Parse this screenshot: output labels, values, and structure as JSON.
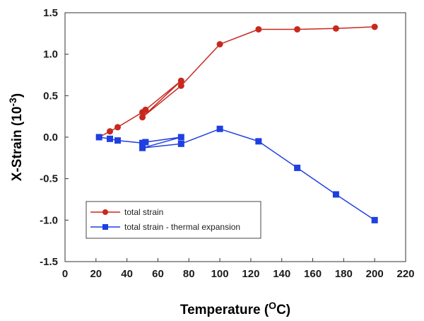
{
  "chart_data": {
    "type": "line",
    "xlabel_main": "Temperature (",
    "xlabel_sup": "O",
    "xlabel_end": "C)",
    "ylabel_main": "X-Strain (10",
    "ylabel_sup": "-3",
    "ylabel_end": ")",
    "xlim": [
      0,
      220
    ],
    "ylim": [
      -1.5,
      1.5
    ],
    "xticks": [
      0,
      20,
      40,
      60,
      80,
      100,
      120,
      140,
      160,
      180,
      200,
      220
    ],
    "yticks": [
      -1.5,
      -1.0,
      -0.5,
      0.0,
      0.5,
      1.0,
      1.5
    ],
    "ytick_labels": [
      "-1.5",
      "-1.0",
      "-0.5",
      "0.0",
      "0.5",
      "1.0",
      "1.5"
    ],
    "legend_position": "bottom-left",
    "series": [
      {
        "name": "total strain",
        "color": "#c8281e",
        "marker": "circle",
        "x": [
          22,
          29,
          34,
          50,
          52,
          75,
          50,
          75,
          100,
          125,
          150,
          175,
          200
        ],
        "y": [
          0.0,
          0.07,
          0.12,
          0.3,
          0.33,
          0.68,
          0.24,
          0.62,
          1.12,
          1.3,
          1.3,
          1.31,
          1.33
        ]
      },
      {
        "name": "total strain - thermal expansion",
        "color": "#1f3fe0",
        "marker": "square",
        "x": [
          22,
          29,
          34,
          50,
          52,
          75,
          50,
          75,
          100,
          125,
          150,
          175,
          200
        ],
        "y": [
          0.0,
          -0.02,
          -0.04,
          -0.07,
          -0.06,
          0.0,
          -0.13,
          -0.08,
          0.1,
          -0.05,
          -0.37,
          -0.69,
          -1.0
        ]
      }
    ]
  }
}
